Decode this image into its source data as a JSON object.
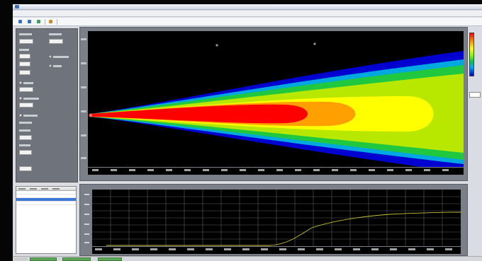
{
  "window": {
    "title": ""
  },
  "menu": {
    "items": [
      "",
      "",
      "",
      "",
      "",
      "",
      "",
      "",
      "",
      ""
    ]
  },
  "toolbar": {
    "buttons": [
      "",
      "",
      "",
      "",
      "",
      "",
      "",
      "",
      ""
    ]
  },
  "heatmap": {
    "colormap": [
      "#ff0000",
      "#ffff00",
      "#00cc44",
      "#0000cc",
      "#000000"
    ]
  },
  "graph": {
    "curve_color": "#c8c03a",
    "grid_color": "#5c5c5c"
  },
  "status": {
    "segment_color": "#5fa85b"
  }
}
